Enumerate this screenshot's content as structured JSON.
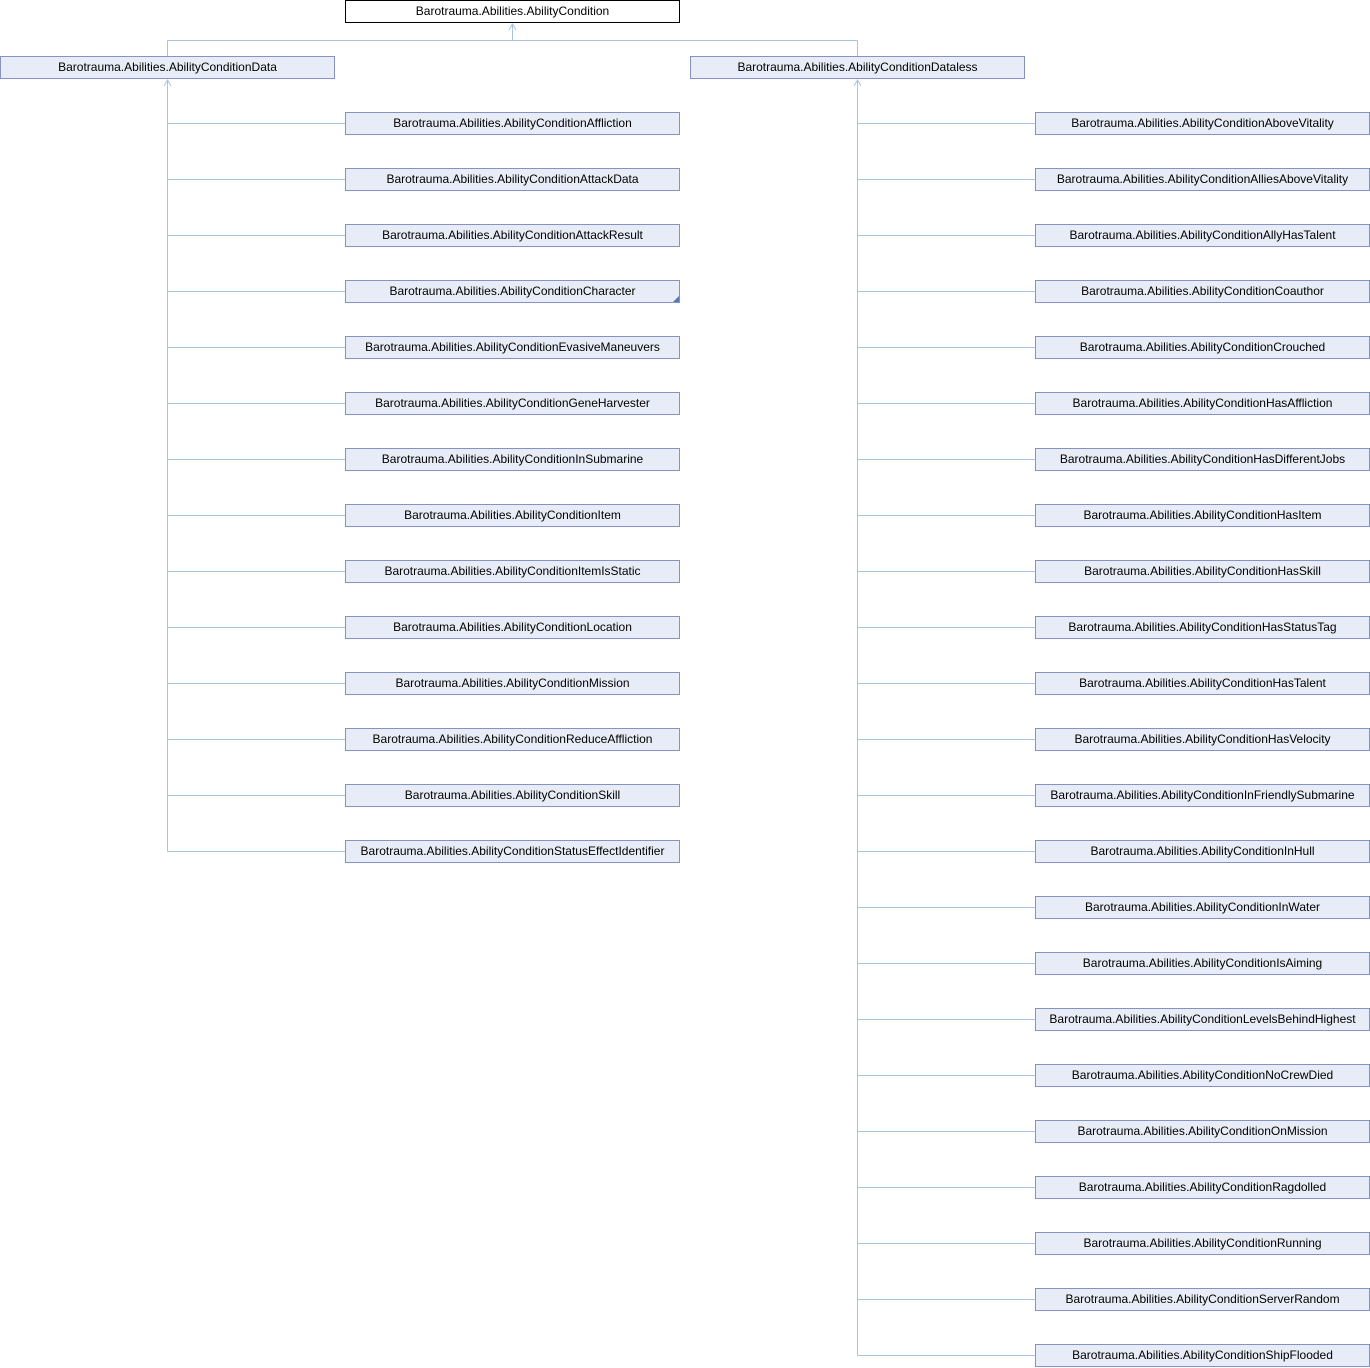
{
  "diagram": {
    "root": {
      "label": "Barotrauma.Abilities.AbilityCondition"
    },
    "data_parent": {
      "label": "Barotrauma.Abilities.AbilityConditionData"
    },
    "dataless_parent": {
      "label": "Barotrauma.Abilities.AbilityConditionDataless"
    },
    "data_children": [
      {
        "label": "Barotrauma.Abilities.AbilityConditionAffliction"
      },
      {
        "label": "Barotrauma.Abilities.AbilityConditionAttackData"
      },
      {
        "label": "Barotrauma.Abilities.AbilityConditionAttackResult"
      },
      {
        "label": "Barotrauma.Abilities.AbilityConditionCharacter",
        "has_subclasses": true
      },
      {
        "label": "Barotrauma.Abilities.AbilityConditionEvasiveManeuvers"
      },
      {
        "label": "Barotrauma.Abilities.AbilityConditionGeneHarvester"
      },
      {
        "label": "Barotrauma.Abilities.AbilityConditionInSubmarine"
      },
      {
        "label": "Barotrauma.Abilities.AbilityConditionItem"
      },
      {
        "label": "Barotrauma.Abilities.AbilityConditionItemIsStatic"
      },
      {
        "label": "Barotrauma.Abilities.AbilityConditionLocation"
      },
      {
        "label": "Barotrauma.Abilities.AbilityConditionMission"
      },
      {
        "label": "Barotrauma.Abilities.AbilityConditionReduceAffliction"
      },
      {
        "label": "Barotrauma.Abilities.AbilityConditionSkill"
      },
      {
        "label": "Barotrauma.Abilities.AbilityConditionStatusEffectIdentifier"
      }
    ],
    "dataless_children": [
      {
        "label": "Barotrauma.Abilities.AbilityConditionAboveVitality"
      },
      {
        "label": "Barotrauma.Abilities.AbilityConditionAlliesAboveVitality"
      },
      {
        "label": "Barotrauma.Abilities.AbilityConditionAllyHasTalent"
      },
      {
        "label": "Barotrauma.Abilities.AbilityConditionCoauthor"
      },
      {
        "label": "Barotrauma.Abilities.AbilityConditionCrouched"
      },
      {
        "label": "Barotrauma.Abilities.AbilityConditionHasAffliction"
      },
      {
        "label": "Barotrauma.Abilities.AbilityConditionHasDifferentJobs"
      },
      {
        "label": "Barotrauma.Abilities.AbilityConditionHasItem"
      },
      {
        "label": "Barotrauma.Abilities.AbilityConditionHasSkill"
      },
      {
        "label": "Barotrauma.Abilities.AbilityConditionHasStatusTag"
      },
      {
        "label": "Barotrauma.Abilities.AbilityConditionHasTalent"
      },
      {
        "label": "Barotrauma.Abilities.AbilityConditionHasVelocity"
      },
      {
        "label": "Barotrauma.Abilities.AbilityConditionInFriendlySubmarine"
      },
      {
        "label": "Barotrauma.Abilities.AbilityConditionInHull"
      },
      {
        "label": "Barotrauma.Abilities.AbilityConditionInWater"
      },
      {
        "label": "Barotrauma.Abilities.AbilityConditionIsAiming"
      },
      {
        "label": "Barotrauma.Abilities.AbilityConditionLevelsBehindHighest"
      },
      {
        "label": "Barotrauma.Abilities.AbilityConditionNoCrewDied"
      },
      {
        "label": "Barotrauma.Abilities.AbilityConditionOnMission"
      },
      {
        "label": "Barotrauma.Abilities.AbilityConditionRagdolled"
      },
      {
        "label": "Barotrauma.Abilities.AbilityConditionRunning"
      },
      {
        "label": "Barotrauma.Abilities.AbilityConditionServerRandom"
      },
      {
        "label": "Barotrauma.Abilities.AbilityConditionShipFlooded"
      }
    ]
  },
  "colors": {
    "node_fill": "#e8ecf7",
    "node_border": "#8493c1",
    "root_border": "#000000",
    "edge": "#a8c4de"
  }
}
